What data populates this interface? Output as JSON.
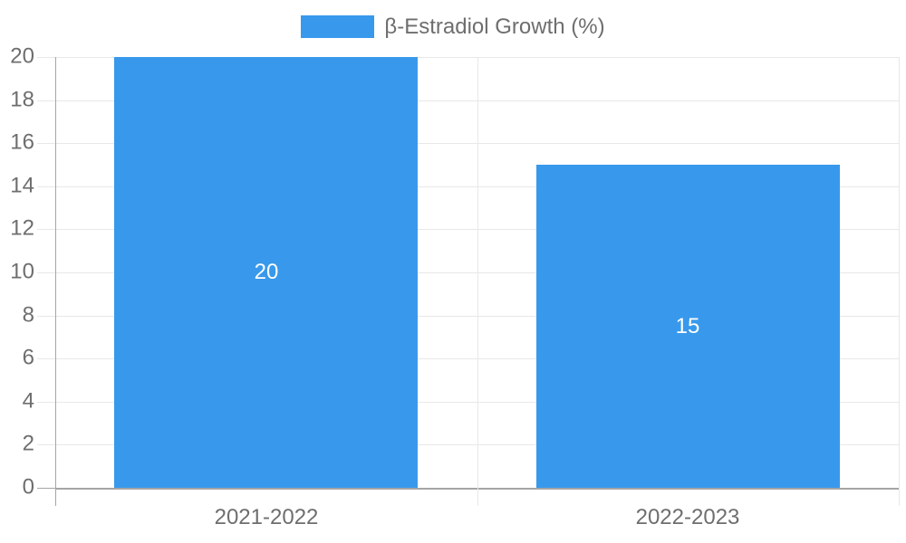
{
  "legend": {
    "label": "β-Estradiol Growth (%)"
  },
  "chart_data": {
    "type": "bar",
    "title": "",
    "xlabel": "",
    "ylabel": "",
    "categories": [
      "2021-2022",
      "2022-2023"
    ],
    "series": [
      {
        "name": "β-Estradiol Growth (%)",
        "values": [
          20,
          15
        ]
      }
    ],
    "data_labels": [
      "20",
      "15"
    ],
    "ylim": [
      0,
      20
    ],
    "yticks": [
      0,
      2,
      4,
      6,
      8,
      10,
      12,
      14,
      16,
      18,
      20
    ],
    "grid": true,
    "legend_position": "top-center",
    "colors": {
      "bar": "#3899ec",
      "grid_line": "#e8e8e8",
      "axis_line": "#a5a5a5",
      "zero_line": "#a5a5a5",
      "tick_text": "#6e6e6e",
      "bar_label_text": "#ffffff",
      "background": "#ffffff"
    }
  }
}
